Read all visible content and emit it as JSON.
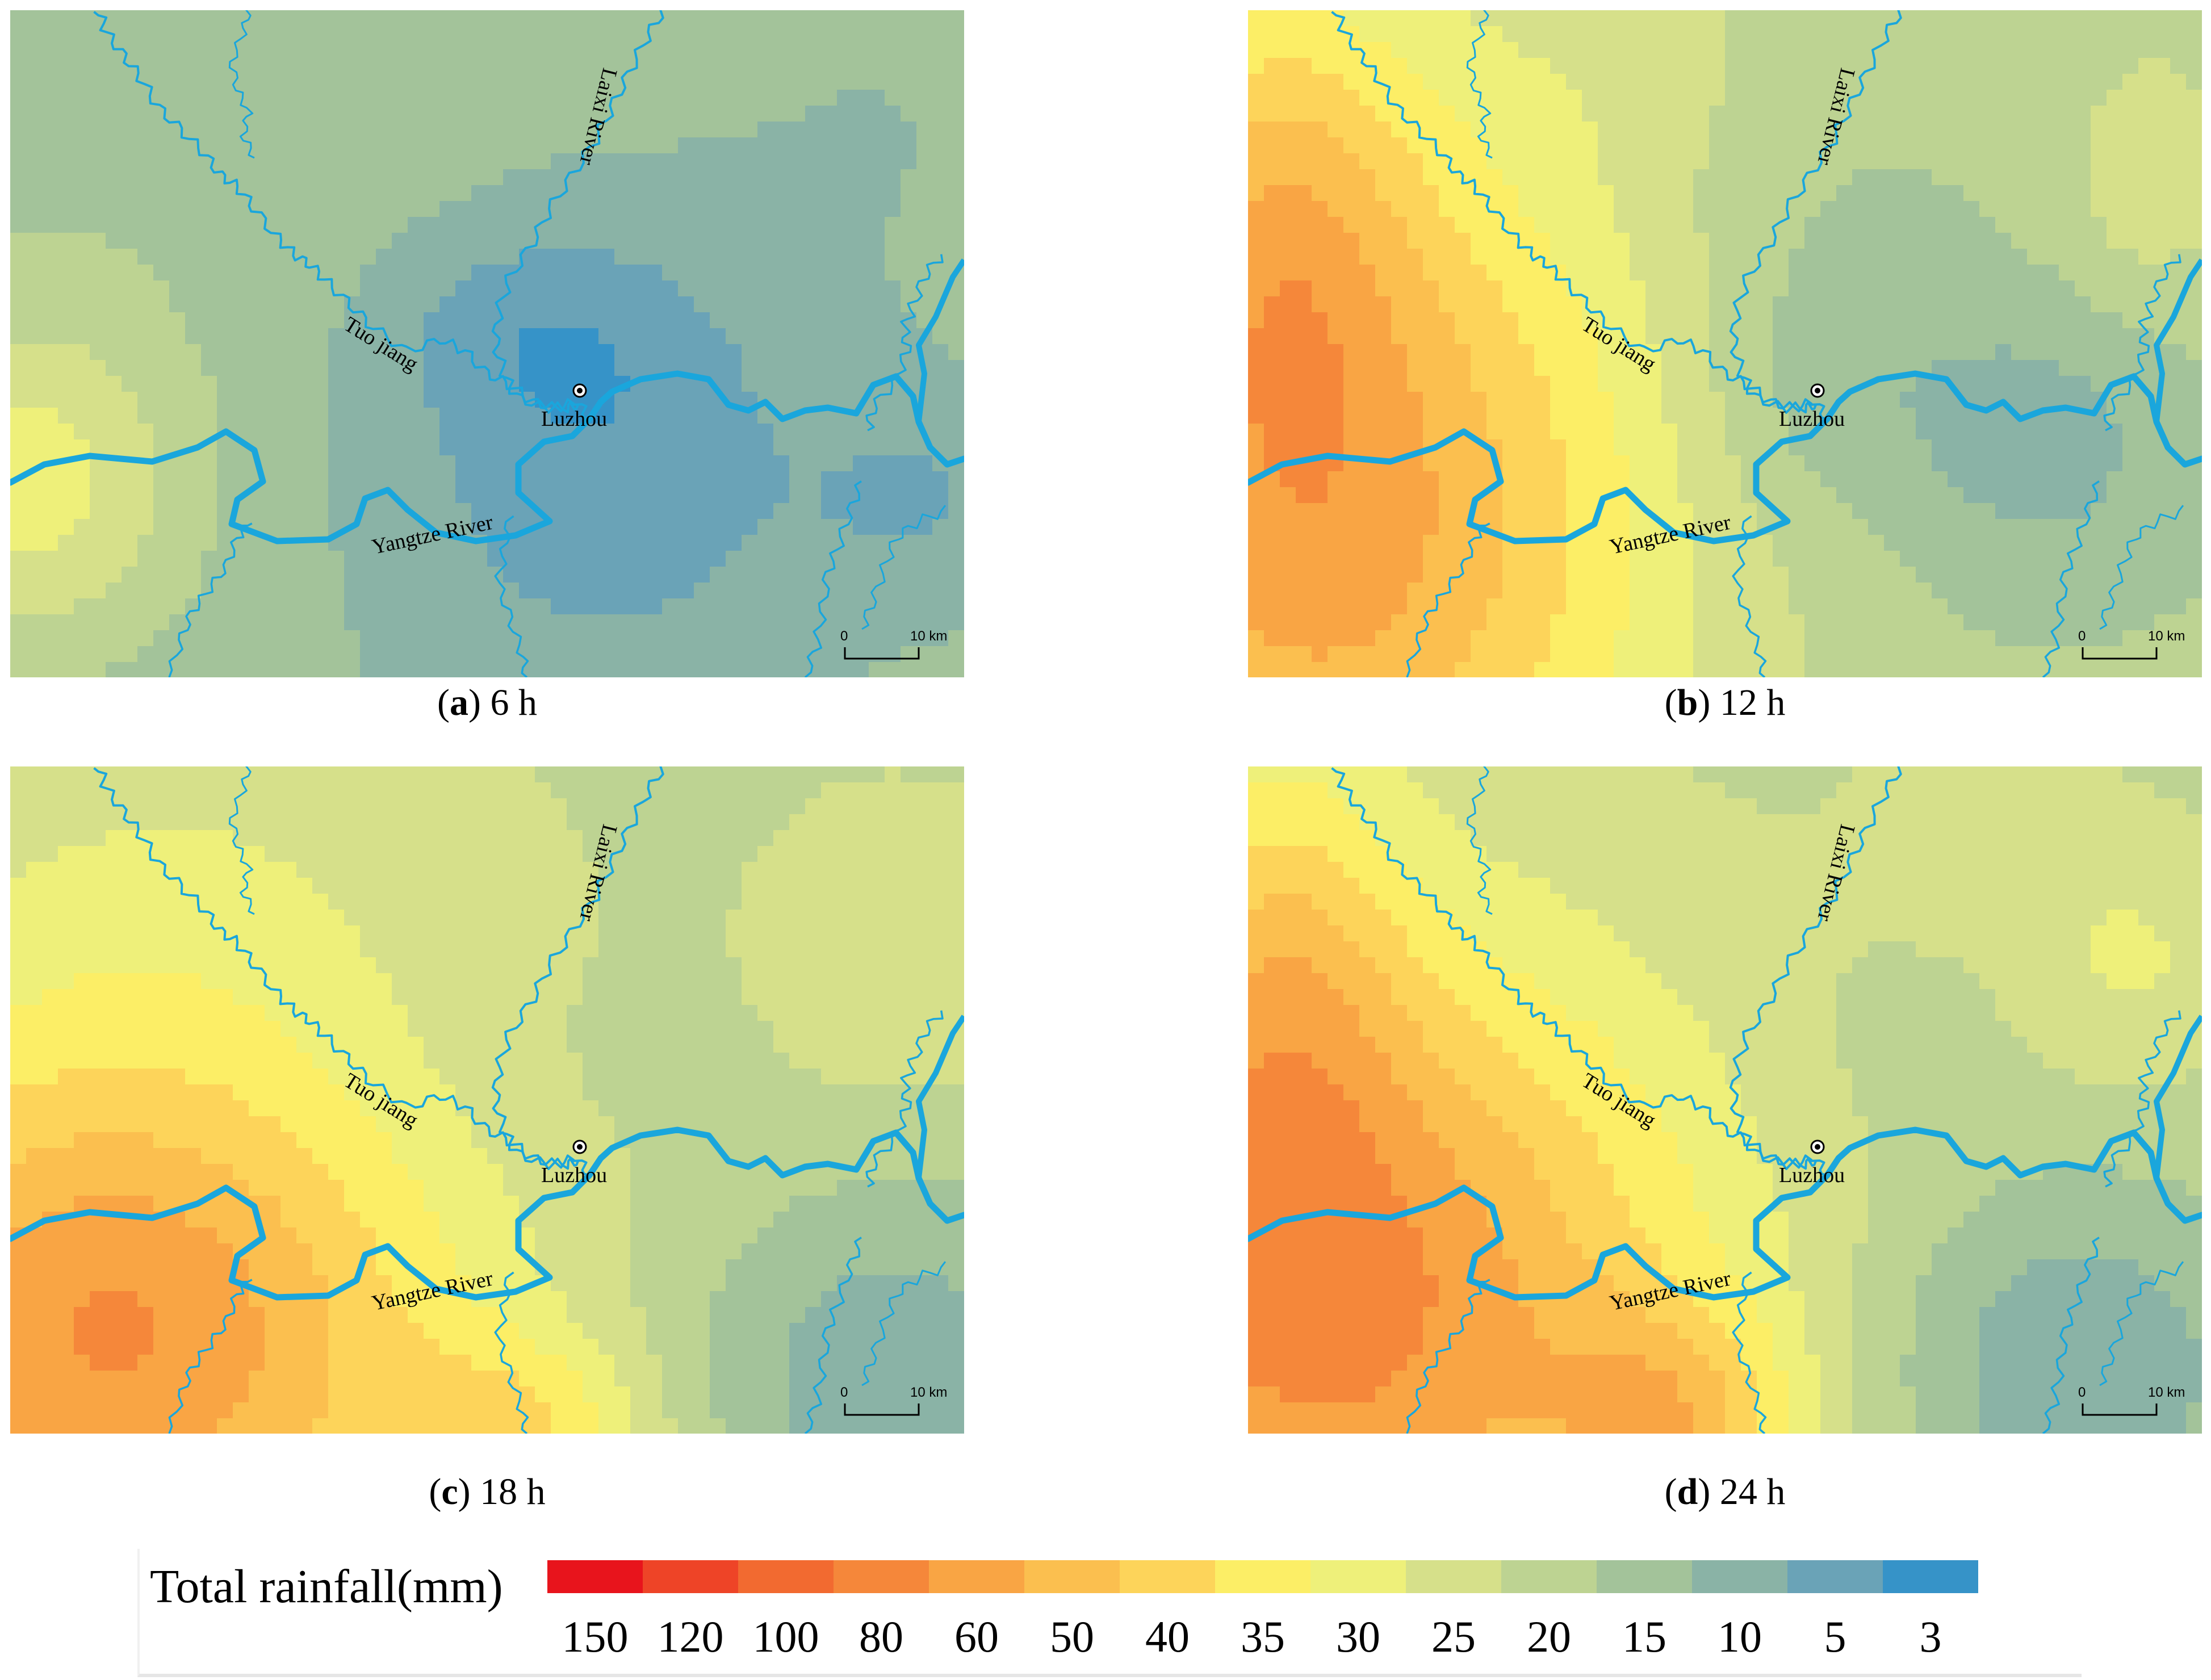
{
  "panels": [
    {
      "tag": "a",
      "time": "6 h",
      "city": "Luzhou",
      "rivers": {
        "tuo": "Tuo jiang",
        "yangtze": "Yangtze River",
        "laixi": "Laixi River"
      },
      "scale": {
        "zero": "0",
        "ten": "10 km"
      }
    },
    {
      "tag": "b",
      "time": "12 h",
      "city": "Luzhou",
      "rivers": {
        "tuo": "Tuo jiang",
        "yangtze": "Yangtze River",
        "laixi": "Laixi River"
      },
      "scale": {
        "zero": "0",
        "ten": "10 km"
      }
    },
    {
      "tag": "c",
      "time": "18 h",
      "city": "Luzhou",
      "rivers": {
        "tuo": "Tuo jiang",
        "yangtze": "Yangtze River",
        "laixi": "Laixi River"
      },
      "scale": {
        "zero": "0",
        "ten": "10 km"
      }
    },
    {
      "tag": "d",
      "time": "24 h",
      "city": "Luzhou",
      "rivers": {
        "tuo": "Tuo jiang",
        "yangtze": "Yangtze River",
        "laixi": "Laixi River"
      },
      "scale": {
        "zero": "0",
        "ten": "10 km"
      }
    }
  ],
  "legend": {
    "title": "Total rainfall(mm)",
    "classes": [
      {
        "label": "150",
        "color": "#e8141c"
      },
      {
        "label": "120",
        "color": "#ee4427"
      },
      {
        "label": "100",
        "color": "#f26a30"
      },
      {
        "label": "80",
        "color": "#f5873a"
      },
      {
        "label": "60",
        "color": "#f9a544"
      },
      {
        "label": "50",
        "color": "#fbbf4f"
      },
      {
        "label": "40",
        "color": "#fdd45a"
      },
      {
        "label": "35",
        "color": "#fcee66"
      },
      {
        "label": "30",
        "color": "#eef07a"
      },
      {
        "label": "25",
        "color": "#d6e08a"
      },
      {
        "label": "20",
        "color": "#bdd392"
      },
      {
        "label": "15",
        "color": "#a3c39a"
      },
      {
        "label": "10",
        "color": "#8ab3a6"
      },
      {
        "label": "5",
        "color": "#6aa3b7"
      },
      {
        "label": "3",
        "color": "#3693c8"
      }
    ]
  },
  "colors": {
    "river": "#1aa6dc",
    "city_marker": "#000000"
  }
}
